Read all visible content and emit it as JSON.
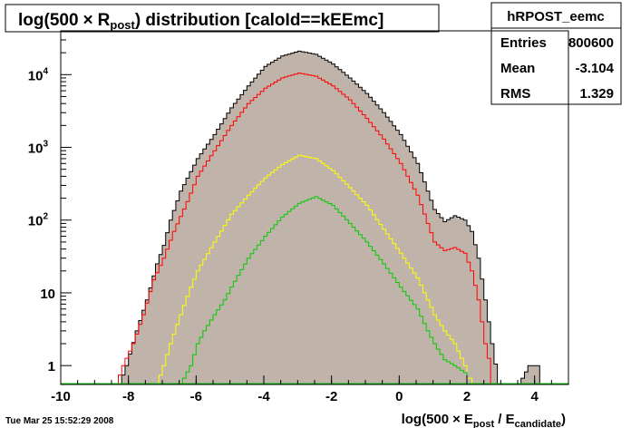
{
  "title": {
    "before": "log(500",
    "times": "×",
    "r": "R",
    "r_sub": "post",
    "after": ") distribution [caloId==kEEmc]"
  },
  "stats": {
    "name": "hRPOST_eemc",
    "rows": [
      {
        "label": "Entries",
        "value": "800600"
      },
      {
        "label": "Mean",
        "value": "-3.104"
      },
      {
        "label": "RMS",
        "value": "1.329"
      }
    ]
  },
  "timestamp": "Tue Mar 25 15:52:29 2008",
  "xaxis": {
    "l1": "log(500",
    "times": "×",
    "e1": "E",
    "e1_sub": "post",
    "mid": " / E",
    "e2_sub": "candidate",
    "close": ")"
  },
  "chart_data": {
    "type": "area",
    "xlim": [
      -10,
      5
    ],
    "ylim": [
      0.55,
      40000
    ],
    "log_y": true,
    "x_ticks": [
      -10,
      -8,
      -6,
      -4,
      -2,
      0,
      2,
      4
    ],
    "y_ticks": [
      {
        "value": 1,
        "label": "1"
      },
      {
        "value": 10,
        "label": "10"
      },
      {
        "value": 100,
        "label": "10",
        "exp": "2"
      },
      {
        "value": 1000,
        "label": "10",
        "exp": "3"
      },
      {
        "value": 10000,
        "label": "10",
        "exp": "4"
      }
    ],
    "colors": {
      "fill": "#c0b4aa",
      "total": "#000000",
      "red": "#ff0000",
      "yellow": "#ffff00",
      "green": "#00cc00"
    },
    "series": [
      {
        "key": "total",
        "color": "#000000",
        "fill": "#c0b4aa",
        "points": [
          [
            -8.3,
            0.55
          ],
          [
            -8.1,
            1
          ],
          [
            -7.8,
            3
          ],
          [
            -7.5,
            8
          ],
          [
            -7.2,
            25
          ],
          [
            -7.0,
            45
          ],
          [
            -6.8,
            100
          ],
          [
            -6.5,
            250
          ],
          [
            -6.0,
            700
          ],
          [
            -5.5,
            1500
          ],
          [
            -5.0,
            3500
          ],
          [
            -4.5,
            7000
          ],
          [
            -4.0,
            13000
          ],
          [
            -3.5,
            18000
          ],
          [
            -3.0,
            21000
          ],
          [
            -2.5,
            19000
          ],
          [
            -2.0,
            14000
          ],
          [
            -1.5,
            9000
          ],
          [
            -1.0,
            5500
          ],
          [
            -0.5,
            3000
          ],
          [
            0.0,
            1500
          ],
          [
            0.5,
            600
          ],
          [
            0.8,
            250
          ],
          [
            1.0,
            140
          ],
          [
            1.3,
            95
          ],
          [
            1.6,
            115
          ],
          [
            1.9,
            100
          ],
          [
            2.1,
            70
          ],
          [
            2.3,
            30
          ],
          [
            2.5,
            8
          ],
          [
            2.7,
            2
          ],
          [
            2.9,
            0.55
          ],
          [
            3.5,
            0.55
          ],
          [
            3.8,
            1
          ],
          [
            4.0,
            1
          ],
          [
            4.05,
            0.55
          ]
        ]
      },
      {
        "key": "red",
        "color": "#ff0000",
        "fill": "none",
        "points": [
          [
            -8.4,
            0.55
          ],
          [
            -8.2,
            1
          ],
          [
            -7.9,
            2
          ],
          [
            -7.6,
            5
          ],
          [
            -7.3,
            15
          ],
          [
            -7.0,
            30
          ],
          [
            -6.7,
            70
          ],
          [
            -6.3,
            180
          ],
          [
            -6.0,
            400
          ],
          [
            -5.5,
            900
          ],
          [
            -5.0,
            2000
          ],
          [
            -4.5,
            4000
          ],
          [
            -4.0,
            6500
          ],
          [
            -3.5,
            9000
          ],
          [
            -3.0,
            10500
          ],
          [
            -2.5,
            9500
          ],
          [
            -2.0,
            7000
          ],
          [
            -1.5,
            4500
          ],
          [
            -1.0,
            2500
          ],
          [
            -0.5,
            1300
          ],
          [
            0.0,
            600
          ],
          [
            0.5,
            220
          ],
          [
            0.8,
            90
          ],
          [
            1.0,
            50
          ],
          [
            1.3,
            38
          ],
          [
            1.6,
            42
          ],
          [
            1.9,
            35
          ],
          [
            2.1,
            20
          ],
          [
            2.3,
            8
          ],
          [
            2.5,
            2
          ],
          [
            2.65,
            1
          ],
          [
            2.7,
            0.55
          ]
        ]
      },
      {
        "key": "yellow",
        "color": "#ffff00",
        "fill": "none",
        "points": [
          [
            -7.2,
            0.55
          ],
          [
            -7.0,
            1
          ],
          [
            -6.8,
            2
          ],
          [
            -6.5,
            5
          ],
          [
            -6.2,
            12
          ],
          [
            -6.0,
            20
          ],
          [
            -5.5,
            50
          ],
          [
            -5.0,
            120
          ],
          [
            -4.5,
            220
          ],
          [
            -4.0,
            380
          ],
          [
            -3.5,
            580
          ],
          [
            -3.0,
            780
          ],
          [
            -2.5,
            700
          ],
          [
            -2.0,
            480
          ],
          [
            -1.5,
            280
          ],
          [
            -1.0,
            160
          ],
          [
            -0.5,
            75
          ],
          [
            0.0,
            35
          ],
          [
            0.5,
            16
          ],
          [
            0.8,
            8
          ],
          [
            1.0,
            5
          ],
          [
            1.3,
            3
          ],
          [
            1.6,
            2
          ],
          [
            1.9,
            1
          ],
          [
            2.05,
            0.55
          ]
        ]
      },
      {
        "key": "green",
        "color": "#00cc00",
        "fill": "none",
        "points": [
          [
            -6.5,
            0.55
          ],
          [
            -6.2,
            1
          ],
          [
            -6.0,
            2
          ],
          [
            -5.8,
            3
          ],
          [
            -5.5,
            5
          ],
          [
            -5.2,
            8
          ],
          [
            -5.0,
            12
          ],
          [
            -4.5,
            30
          ],
          [
            -4.0,
            60
          ],
          [
            -3.5,
            110
          ],
          [
            -3.0,
            170
          ],
          [
            -2.5,
            210
          ],
          [
            -2.0,
            160
          ],
          [
            -1.5,
            90
          ],
          [
            -1.0,
            50
          ],
          [
            -0.5,
            25
          ],
          [
            0.0,
            12
          ],
          [
            0.5,
            6
          ],
          [
            0.8,
            3
          ],
          [
            1.0,
            2
          ],
          [
            1.3,
            1.2
          ],
          [
            1.6,
            1
          ],
          [
            1.9,
            0.8
          ],
          [
            2.0,
            0.55
          ]
        ]
      }
    ]
  }
}
